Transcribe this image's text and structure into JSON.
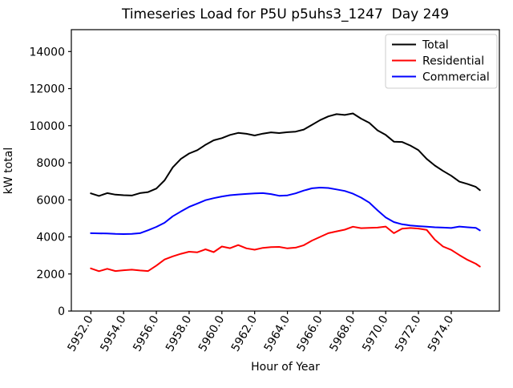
{
  "figure": {
    "title": "Timeseries Load for P5U p5uhs3_1247  Day 249",
    "xlabel": "Hour of Year",
    "ylabel": "kW total"
  },
  "legend": {
    "entries": [
      "Total",
      "Residential",
      "Commercial"
    ]
  },
  "chart_data": {
    "type": "line",
    "title": "Timeseries Load for P5U p5uhs3_1247  Day 249",
    "xlabel": "Hour of Year",
    "ylabel": "kW total",
    "grid": false,
    "legend_position": "upper right",
    "xlim": [
      5950.81,
      5976.94
    ],
    "ylim": [
      0,
      15180
    ],
    "xticks": [
      5952,
      5954,
      5956,
      5958,
      5960,
      5962,
      5964,
      5966,
      5968,
      5970,
      5972,
      5974
    ],
    "xtick_labels": [
      "5952.0",
      "5954.0",
      "5956.0",
      "5958.0",
      "5960.0",
      "5962.0",
      "5964.0",
      "5966.0",
      "5968.0",
      "5970.0",
      "5972.0",
      "5974.0"
    ],
    "yticks": [
      0,
      2000,
      4000,
      6000,
      8000,
      10000,
      12000,
      14000
    ],
    "ytick_labels": [
      "0",
      "2000",
      "4000",
      "6000",
      "8000",
      "10000",
      "12000",
      "14000"
    ],
    "xtick_rotation_deg": 60,
    "x": [
      5952.0,
      5952.5,
      5953.0,
      5953.5,
      5954.0,
      5954.5,
      5955.0,
      5955.5,
      5956.0,
      5956.5,
      5957.0,
      5957.5,
      5958.0,
      5958.5,
      5959.0,
      5959.5,
      5960.0,
      5960.5,
      5961.0,
      5961.5,
      5962.0,
      5962.5,
      5963.0,
      5963.5,
      5964.0,
      5964.5,
      5965.0,
      5965.5,
      5966.0,
      5966.5,
      5967.0,
      5967.5,
      5968.0,
      5968.5,
      5969.0,
      5969.5,
      5970.0,
      5970.5,
      5971.0,
      5971.5,
      5972.0,
      5972.5,
      5973.0,
      5973.5,
      5974.0,
      5974.5,
      5975.0,
      5975.5,
      5975.75
    ],
    "series": [
      {
        "name": "Total",
        "color": "#000000",
        "values": [
          6350,
          6210,
          6360,
          6280,
          6250,
          6230,
          6360,
          6420,
          6610,
          7050,
          7750,
          8210,
          8500,
          8680,
          8970,
          9210,
          9330,
          9500,
          9610,
          9560,
          9470,
          9570,
          9640,
          9600,
          9650,
          9680,
          9790,
          10040,
          10300,
          10500,
          10620,
          10580,
          10660,
          10380,
          10150,
          9750,
          9500,
          9140,
          9120,
          8930,
          8680,
          8210,
          7850,
          7560,
          7300,
          6980,
          6850,
          6700,
          6520
        ]
      },
      {
        "name": "Residential",
        "color": "#ff0000",
        "values": [
          2300,
          2150,
          2280,
          2160,
          2200,
          2230,
          2190,
          2160,
          2450,
          2780,
          2950,
          3090,
          3200,
          3170,
          3330,
          3180,
          3480,
          3390,
          3560,
          3380,
          3310,
          3410,
          3450,
          3460,
          3380,
          3420,
          3550,
          3800,
          4000,
          4200,
          4300,
          4390,
          4550,
          4470,
          4490,
          4500,
          4560,
          4200,
          4440,
          4480,
          4450,
          4380,
          3850,
          3480,
          3300,
          3020,
          2760,
          2550,
          2400
        ]
      },
      {
        "name": "Commercial",
        "color": "#0000ff",
        "values": [
          4200,
          4190,
          4180,
          4160,
          4150,
          4160,
          4200,
          4360,
          4540,
          4760,
          5110,
          5370,
          5620,
          5800,
          5980,
          6090,
          6180,
          6250,
          6290,
          6320,
          6350,
          6360,
          6310,
          6220,
          6240,
          6350,
          6500,
          6620,
          6660,
          6640,
          6560,
          6480,
          6330,
          6120,
          5850,
          5430,
          5050,
          4800,
          4680,
          4620,
          4580,
          4550,
          4520,
          4500,
          4480,
          4560,
          4520,
          4490,
          4350
        ]
      }
    ]
  }
}
